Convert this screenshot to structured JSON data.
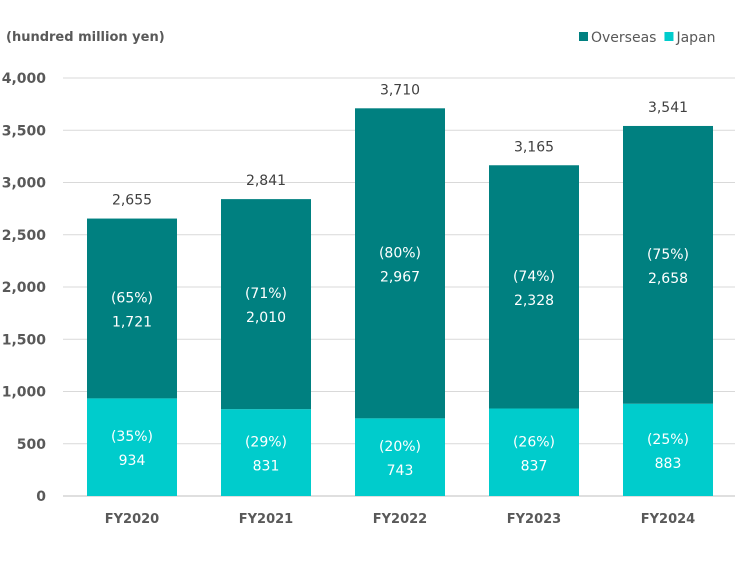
{
  "chart_data": {
    "type": "bar",
    "stacked": true,
    "unit_label": "(hundred million yen)",
    "categories": [
      "FY2020",
      "FY2021",
      "FY2022",
      "FY2023",
      "FY2024"
    ],
    "series": [
      {
        "name": "Japan",
        "color": "#00CCCC",
        "values": [
          934,
          831,
          743,
          837,
          883
        ],
        "shares": [
          "(35%)",
          "(29%)",
          "(20%)",
          "(26%)",
          "(25%)"
        ]
      },
      {
        "name": "Overseas",
        "color": "#008080",
        "values": [
          1721,
          2010,
          2967,
          2328,
          2658
        ],
        "shares": [
          "(65%)",
          "(71%)",
          "(80%)",
          "(74%)",
          "(75%)"
        ]
      }
    ],
    "totals": [
      2655,
      2841,
      3710,
      3165,
      3541
    ],
    "ylim": [
      0,
      4000
    ],
    "yticks": [
      "0",
      "500",
      "1,000",
      "1,500",
      "2,000",
      "2,500",
      "3,000",
      "3,500",
      "4,000"
    ],
    "grid": true,
    "legend_position": "top-right",
    "legend_order": [
      "Overseas",
      "Japan"
    ]
  }
}
